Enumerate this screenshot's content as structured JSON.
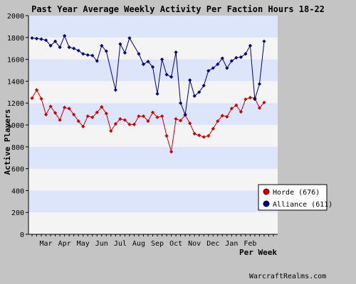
{
  "chart_data": {
    "type": "line",
    "title": "Past Year Average Weekly Activity Per Faction Hours 18-22",
    "xlabel": "Per Week",
    "ylabel": "Active Players",
    "ylim": [
      0,
      2000
    ],
    "yticks": [
      0,
      200,
      400,
      600,
      800,
      1000,
      1200,
      1400,
      1600,
      1800,
      2000
    ],
    "grid": true,
    "legend": "right",
    "x_ticks": [
      "Mar",
      "Apr",
      "May",
      "Jun",
      "Jul",
      "Aug",
      "Sep",
      "Oct",
      "Nov",
      "Dec",
      "Jan",
      "Feb"
    ],
    "x_tick_positions": [
      3,
      7,
      11,
      15,
      19,
      23,
      27,
      31,
      35,
      39,
      43,
      47
    ],
    "x_range": [
      0,
      52
    ],
    "x": [
      0,
      1,
      2,
      3,
      4,
      5,
      6,
      7,
      8,
      9,
      10,
      11,
      12,
      13,
      14,
      15,
      16,
      17,
      18,
      19,
      20,
      21,
      22,
      23,
      24,
      25,
      26,
      27,
      28,
      29,
      30,
      31,
      32,
      33,
      34,
      35,
      36,
      37,
      38,
      39,
      40,
      41,
      42,
      43,
      44,
      45,
      46,
      47,
      48,
      49,
      50,
      51,
      52
    ],
    "series": [
      {
        "name": "Horde (676)",
        "color": "#cc0000",
        "values": [
          1245,
          1320,
          1240,
          1095,
          1170,
          1110,
          1045,
          1160,
          1150,
          1095,
          1035,
          985,
          1080,
          1070,
          1115,
          1165,
          1105,
          945,
          1010,
          1055,
          1045,
          1005,
          1005,
          1080,
          1080,
          1035,
          1115,
          1070,
          1080,
          900,
          755,
          1055,
          1040,
          1090,
          1015,
          920,
          905,
          890,
          900,
          965,
          1035,
          1085,
          1075,
          1150,
          1180,
          1120,
          1235,
          1250,
          1245,
          1155,
          1205,
          null,
          null
        ]
      },
      {
        "name": "Alliance (611)",
        "color": "#000080",
        "values": [
          1795,
          1790,
          1785,
          1775,
          1725,
          1765,
          1710,
          1815,
          1710,
          1700,
          1680,
          1650,
          1640,
          1635,
          1585,
          1725,
          1675,
          null,
          1320,
          1740,
          1660,
          1795,
          null,
          1650,
          1555,
          1580,
          1530,
          1285,
          1600,
          1460,
          1440,
          1665,
          1200,
          1095,
          1410,
          1265,
          1300,
          1360,
          1495,
          1520,
          1555,
          1610,
          1520,
          1585,
          1615,
          1620,
          1650,
          1725,
          1235,
          1375,
          1765,
          null,
          null
        ]
      }
    ],
    "footer": "WarcraftRealms.com"
  }
}
